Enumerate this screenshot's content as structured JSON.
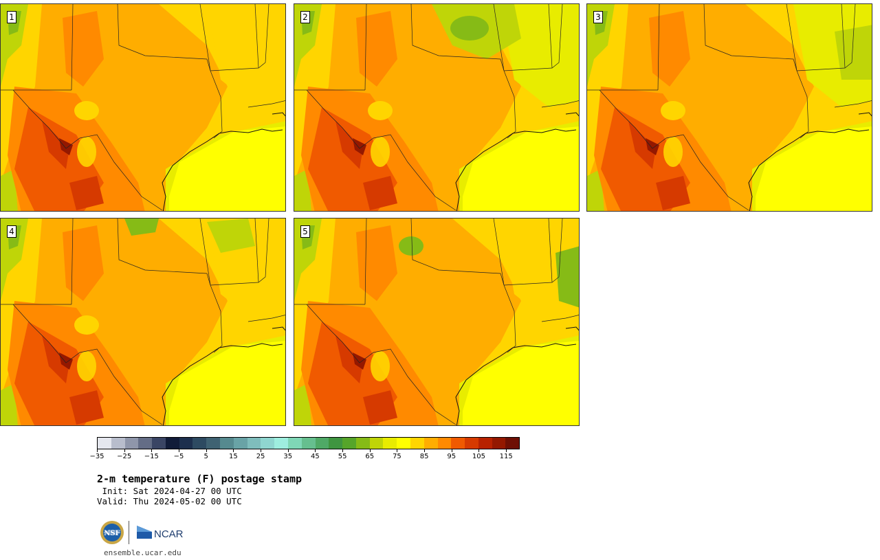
{
  "panels": [
    {
      "num": "1",
      "variant": 0
    },
    {
      "num": "2",
      "variant": 1
    },
    {
      "num": "3",
      "variant": 2
    },
    {
      "num": "4",
      "variant": 3
    },
    {
      "num": "5",
      "variant": 4
    }
  ],
  "colorbar": {
    "colors": [
      "#e5e7ee",
      "#b8bdcc",
      "#8f96aa",
      "#646d86",
      "#3a4564",
      "#111c39",
      "#1d2f4d",
      "#2d4a61",
      "#3f6272",
      "#568a8f",
      "#69a3a6",
      "#7fbdbc",
      "#8fd6d0",
      "#9eeedf",
      "#7fd7b6",
      "#66bf8f",
      "#4fa966",
      "#3f9540",
      "#56a52a",
      "#86bb16",
      "#bfd508",
      "#e8ec00",
      "#ffff00",
      "#ffd500",
      "#ffad00",
      "#ff8a00",
      "#f05a00",
      "#d63a00",
      "#b82200",
      "#941800",
      "#6e0f04"
    ],
    "tick_labels": [
      "−35",
      "−25",
      "−15",
      "−5",
      "5",
      "15",
      "25",
      "35",
      "45",
      "55",
      "65",
      "75",
      "85",
      "95",
      "105",
      "115"
    ]
  },
  "title": "2-m temperature (F) postage stamp",
  "init_line": " Init: Sat 2024-04-27 00 UTC",
  "valid_line": "Valid: Thu 2024-05-02 00 UTC",
  "logos": {
    "nsf_text": "NSF",
    "ncar_text": "NCAR"
  },
  "url": "ensemble.ucar.edu"
}
